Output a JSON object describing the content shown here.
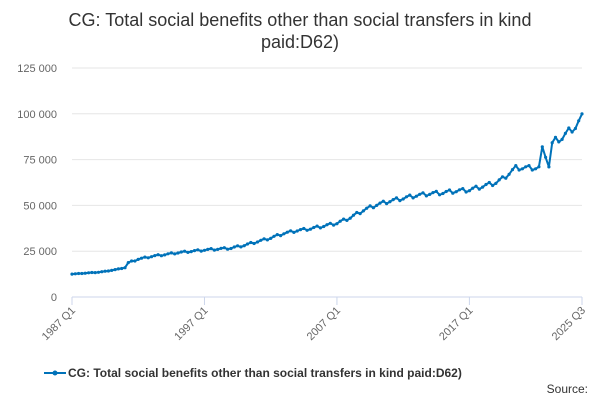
{
  "chart_data": {
    "type": "line",
    "title_lines": [
      "CG: Total social benefits other than social transfers in kind",
      "paid:D62)"
    ],
    "ylim": [
      0,
      125000
    ],
    "y_ticks": [
      0,
      25000,
      50000,
      75000,
      100000,
      125000
    ],
    "y_tick_labels": [
      "0",
      "25 000",
      "50 000",
      "75 000",
      "100 000",
      "125 000"
    ],
    "x_ticks": [
      {
        "pos": 0,
        "label": "1987 Q1"
      },
      {
        "pos": 40,
        "label": "1997 Q1"
      },
      {
        "pos": 80,
        "label": "2007 Q1"
      },
      {
        "pos": 120,
        "label": "2017 Q1"
      },
      {
        "pos": 154,
        "label": "2025 Q3"
      }
    ],
    "x_start": 0,
    "x_end": 154,
    "anchors": [
      [
        0,
        12500
      ],
      [
        8,
        13500
      ],
      [
        12,
        14500
      ],
      [
        16,
        16000
      ],
      [
        17,
        18500
      ],
      [
        20,
        20500
      ],
      [
        24,
        22000
      ],
      [
        28,
        23000
      ],
      [
        32,
        24000
      ],
      [
        36,
        24800
      ],
      [
        40,
        25500
      ],
      [
        48,
        26500
      ],
      [
        52,
        28000
      ],
      [
        56,
        30000
      ],
      [
        60,
        32000
      ],
      [
        64,
        34500
      ],
      [
        68,
        36000
      ],
      [
        72,
        37000
      ],
      [
        76,
        38500
      ],
      [
        80,
        40000
      ],
      [
        84,
        43000
      ],
      [
        88,
        47000
      ],
      [
        92,
        50000
      ],
      [
        96,
        52000
      ],
      [
        100,
        53500
      ],
      [
        104,
        55000
      ],
      [
        108,
        56000
      ],
      [
        112,
        56500
      ],
      [
        116,
        57500
      ],
      [
        120,
        58000
      ],
      [
        124,
        60000
      ],
      [
        128,
        62000
      ],
      [
        130,
        64000
      ],
      [
        132,
        67000
      ],
      [
        134,
        70000
      ],
      [
        138,
        70000
      ],
      [
        141,
        70000
      ],
      [
        142,
        80000
      ],
      [
        143,
        77000
      ],
      [
        144,
        71000
      ],
      [
        145,
        83000
      ],
      [
        146,
        85000
      ],
      [
        148,
        86000
      ],
      [
        150,
        90000
      ],
      [
        152,
        92000
      ],
      [
        154,
        97500
      ]
    ],
    "seasonal_amplitude": 1500,
    "series_name": "CG: Total social benefits other than social transfers in kind paid:D62)",
    "color": "#0072b9",
    "source_label": "Source:"
  }
}
